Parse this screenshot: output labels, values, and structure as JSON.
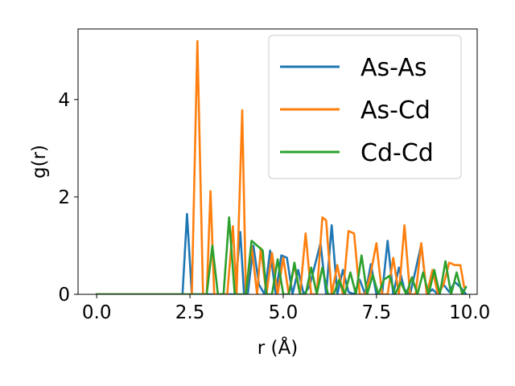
{
  "chart_data": {
    "type": "line",
    "xlabel": "r (Å)",
    "ylabel": "g(r)",
    "xlim": [
      -0.5,
      10.2
    ],
    "ylim": [
      0,
      5.45
    ],
    "xticks": [
      0.0,
      2.5,
      5.0,
      7.5,
      10.0
    ],
    "xtick_labels": [
      "0.0",
      "2.5",
      "5.0",
      "7.5",
      "10.0"
    ],
    "yticks": [
      0,
      2,
      4
    ],
    "ytick_labels": [
      "0",
      "2",
      "4"
    ],
    "grid": false,
    "legend_position": "top-right",
    "series": [
      {
        "name": "As-As",
        "color": "#1f77b4",
        "x": [
          0.0,
          2.3,
          2.42,
          2.55,
          3.1,
          3.55,
          3.7,
          3.85,
          3.95,
          4.05,
          4.2,
          4.35,
          4.5,
          4.65,
          4.8,
          4.95,
          5.1,
          5.25,
          5.4,
          5.55,
          5.7,
          5.85,
          6.0,
          6.15,
          6.3,
          6.45,
          6.6,
          6.75,
          6.9,
          7.05,
          7.2,
          7.35,
          7.5,
          7.65,
          7.8,
          7.95,
          8.1,
          8.25,
          8.4,
          8.55,
          8.7,
          8.85,
          9.0,
          9.15,
          9.3,
          9.45,
          9.6,
          9.75,
          9.9
        ],
        "y": [
          0.0,
          0.0,
          1.65,
          0.0,
          0.0,
          0.0,
          0.0,
          1.28,
          0.0,
          0.0,
          1.0,
          0.2,
          0.0,
          0.9,
          0.0,
          0.8,
          0.75,
          0.0,
          0.5,
          0.0,
          0.15,
          0.6,
          1.05,
          0.0,
          1.42,
          0.0,
          0.5,
          0.05,
          0.0,
          0.3,
          0.0,
          0.62,
          0.0,
          0.0,
          1.1,
          0.0,
          0.55,
          0.1,
          0.0,
          0.5,
          1.02,
          0.0,
          0.1,
          0.0,
          0.2,
          0.05,
          0.25,
          0.15,
          0.0
        ]
      },
      {
        "name": "As-Cd",
        "color": "#ff7f0e",
        "x": [
          0.0,
          2.55,
          2.7,
          2.85,
          2.95,
          3.05,
          3.15,
          3.5,
          3.65,
          3.75,
          3.9,
          4.0,
          4.15,
          4.3,
          4.4,
          4.55,
          4.7,
          4.85,
          5.0,
          5.15,
          5.3,
          5.45,
          5.6,
          5.75,
          5.9,
          6.05,
          6.15,
          6.3,
          6.45,
          6.6,
          6.75,
          6.9,
          7.05,
          7.2,
          7.35,
          7.5,
          7.65,
          7.8,
          7.95,
          8.1,
          8.25,
          8.4,
          8.55,
          8.7,
          8.85,
          9.0,
          9.15,
          9.3,
          9.45,
          9.6,
          9.75,
          9.85
        ],
        "y": [
          0.0,
          0.0,
          5.2,
          0.0,
          0.0,
          2.12,
          0.0,
          0.0,
          1.4,
          0.0,
          3.78,
          0.0,
          1.0,
          0.0,
          0.95,
          0.0,
          0.85,
          0.0,
          0.75,
          0.0,
          0.6,
          0.0,
          1.25,
          0.0,
          0.0,
          1.58,
          1.52,
          0.0,
          0.6,
          0.0,
          1.3,
          1.25,
          0.0,
          0.0,
          0.45,
          1.05,
          0.0,
          0.0,
          0.75,
          0.0,
          1.42,
          0.0,
          0.0,
          1.05,
          0.0,
          0.5,
          0.0,
          0.2,
          0.65,
          0.6,
          0.6,
          0.15
        ]
      },
      {
        "name": "Cd-Cd",
        "color": "#2ca02c",
        "x": [
          0.0,
          2.95,
          3.1,
          3.25,
          3.4,
          3.55,
          3.7,
          3.85,
          4.0,
          4.15,
          4.3,
          4.45,
          4.55,
          4.7,
          4.85,
          5.0,
          5.15,
          5.3,
          5.45,
          5.6,
          5.75,
          5.9,
          6.05,
          6.2,
          6.35,
          6.5,
          6.65,
          6.8,
          6.95,
          7.1,
          7.25,
          7.4,
          7.55,
          7.7,
          7.85,
          8.0,
          8.15,
          8.3,
          8.45,
          8.6,
          8.75,
          8.9,
          9.05,
          9.2,
          9.35,
          9.5,
          9.65,
          9.8,
          9.9
        ],
        "y": [
          0.0,
          0.0,
          1.0,
          0.0,
          0.0,
          1.58,
          0.0,
          0.0,
          0.0,
          1.1,
          1.0,
          0.9,
          0.0,
          0.0,
          0.72,
          0.0,
          0.0,
          0.65,
          0.0,
          0.0,
          0.55,
          0.0,
          0.55,
          0.0,
          0.0,
          0.3,
          0.0,
          0.45,
          0.0,
          0.8,
          0.0,
          0.4,
          0.0,
          0.3,
          0.38,
          0.0,
          0.25,
          0.0,
          0.35,
          0.0,
          0.45,
          0.0,
          0.5,
          0.0,
          0.68,
          0.0,
          0.45,
          0.0,
          0.15
        ]
      }
    ]
  }
}
